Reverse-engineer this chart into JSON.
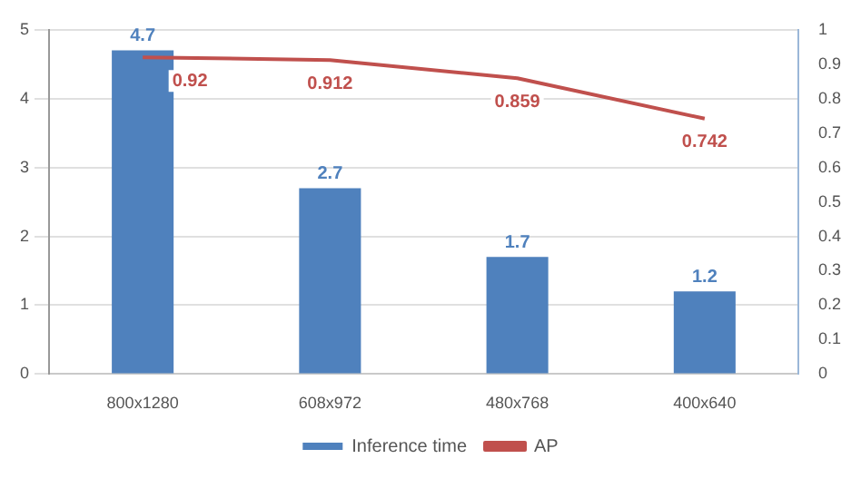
{
  "chart_data": {
    "type": "bar",
    "categories": [
      "800x1280",
      "608x972",
      "480x768",
      "400x640"
    ],
    "series": [
      {
        "name": "Inference time",
        "color": "#4f81bd",
        "values": [
          4.7,
          2.7,
          1.7,
          1.2
        ]
      },
      {
        "name": "AP",
        "type": "line",
        "axis": "y2",
        "color": "#c0504d",
        "values": [
          0.92,
          0.912,
          0.859,
          0.742
        ]
      }
    ],
    "ylim": [
      0,
      5
    ],
    "yticks": [
      0,
      1,
      2,
      3,
      4,
      5
    ],
    "y2lim": [
      0,
      1
    ],
    "y2ticks": [
      0,
      0.1,
      0.2,
      0.3,
      0.4,
      0.5,
      0.6,
      0.7,
      0.8,
      0.9,
      1
    ],
    "grid": "y",
    "legend": "bottom",
    "marker": "none",
    "line_style": "solid",
    "data_labels": true
  }
}
